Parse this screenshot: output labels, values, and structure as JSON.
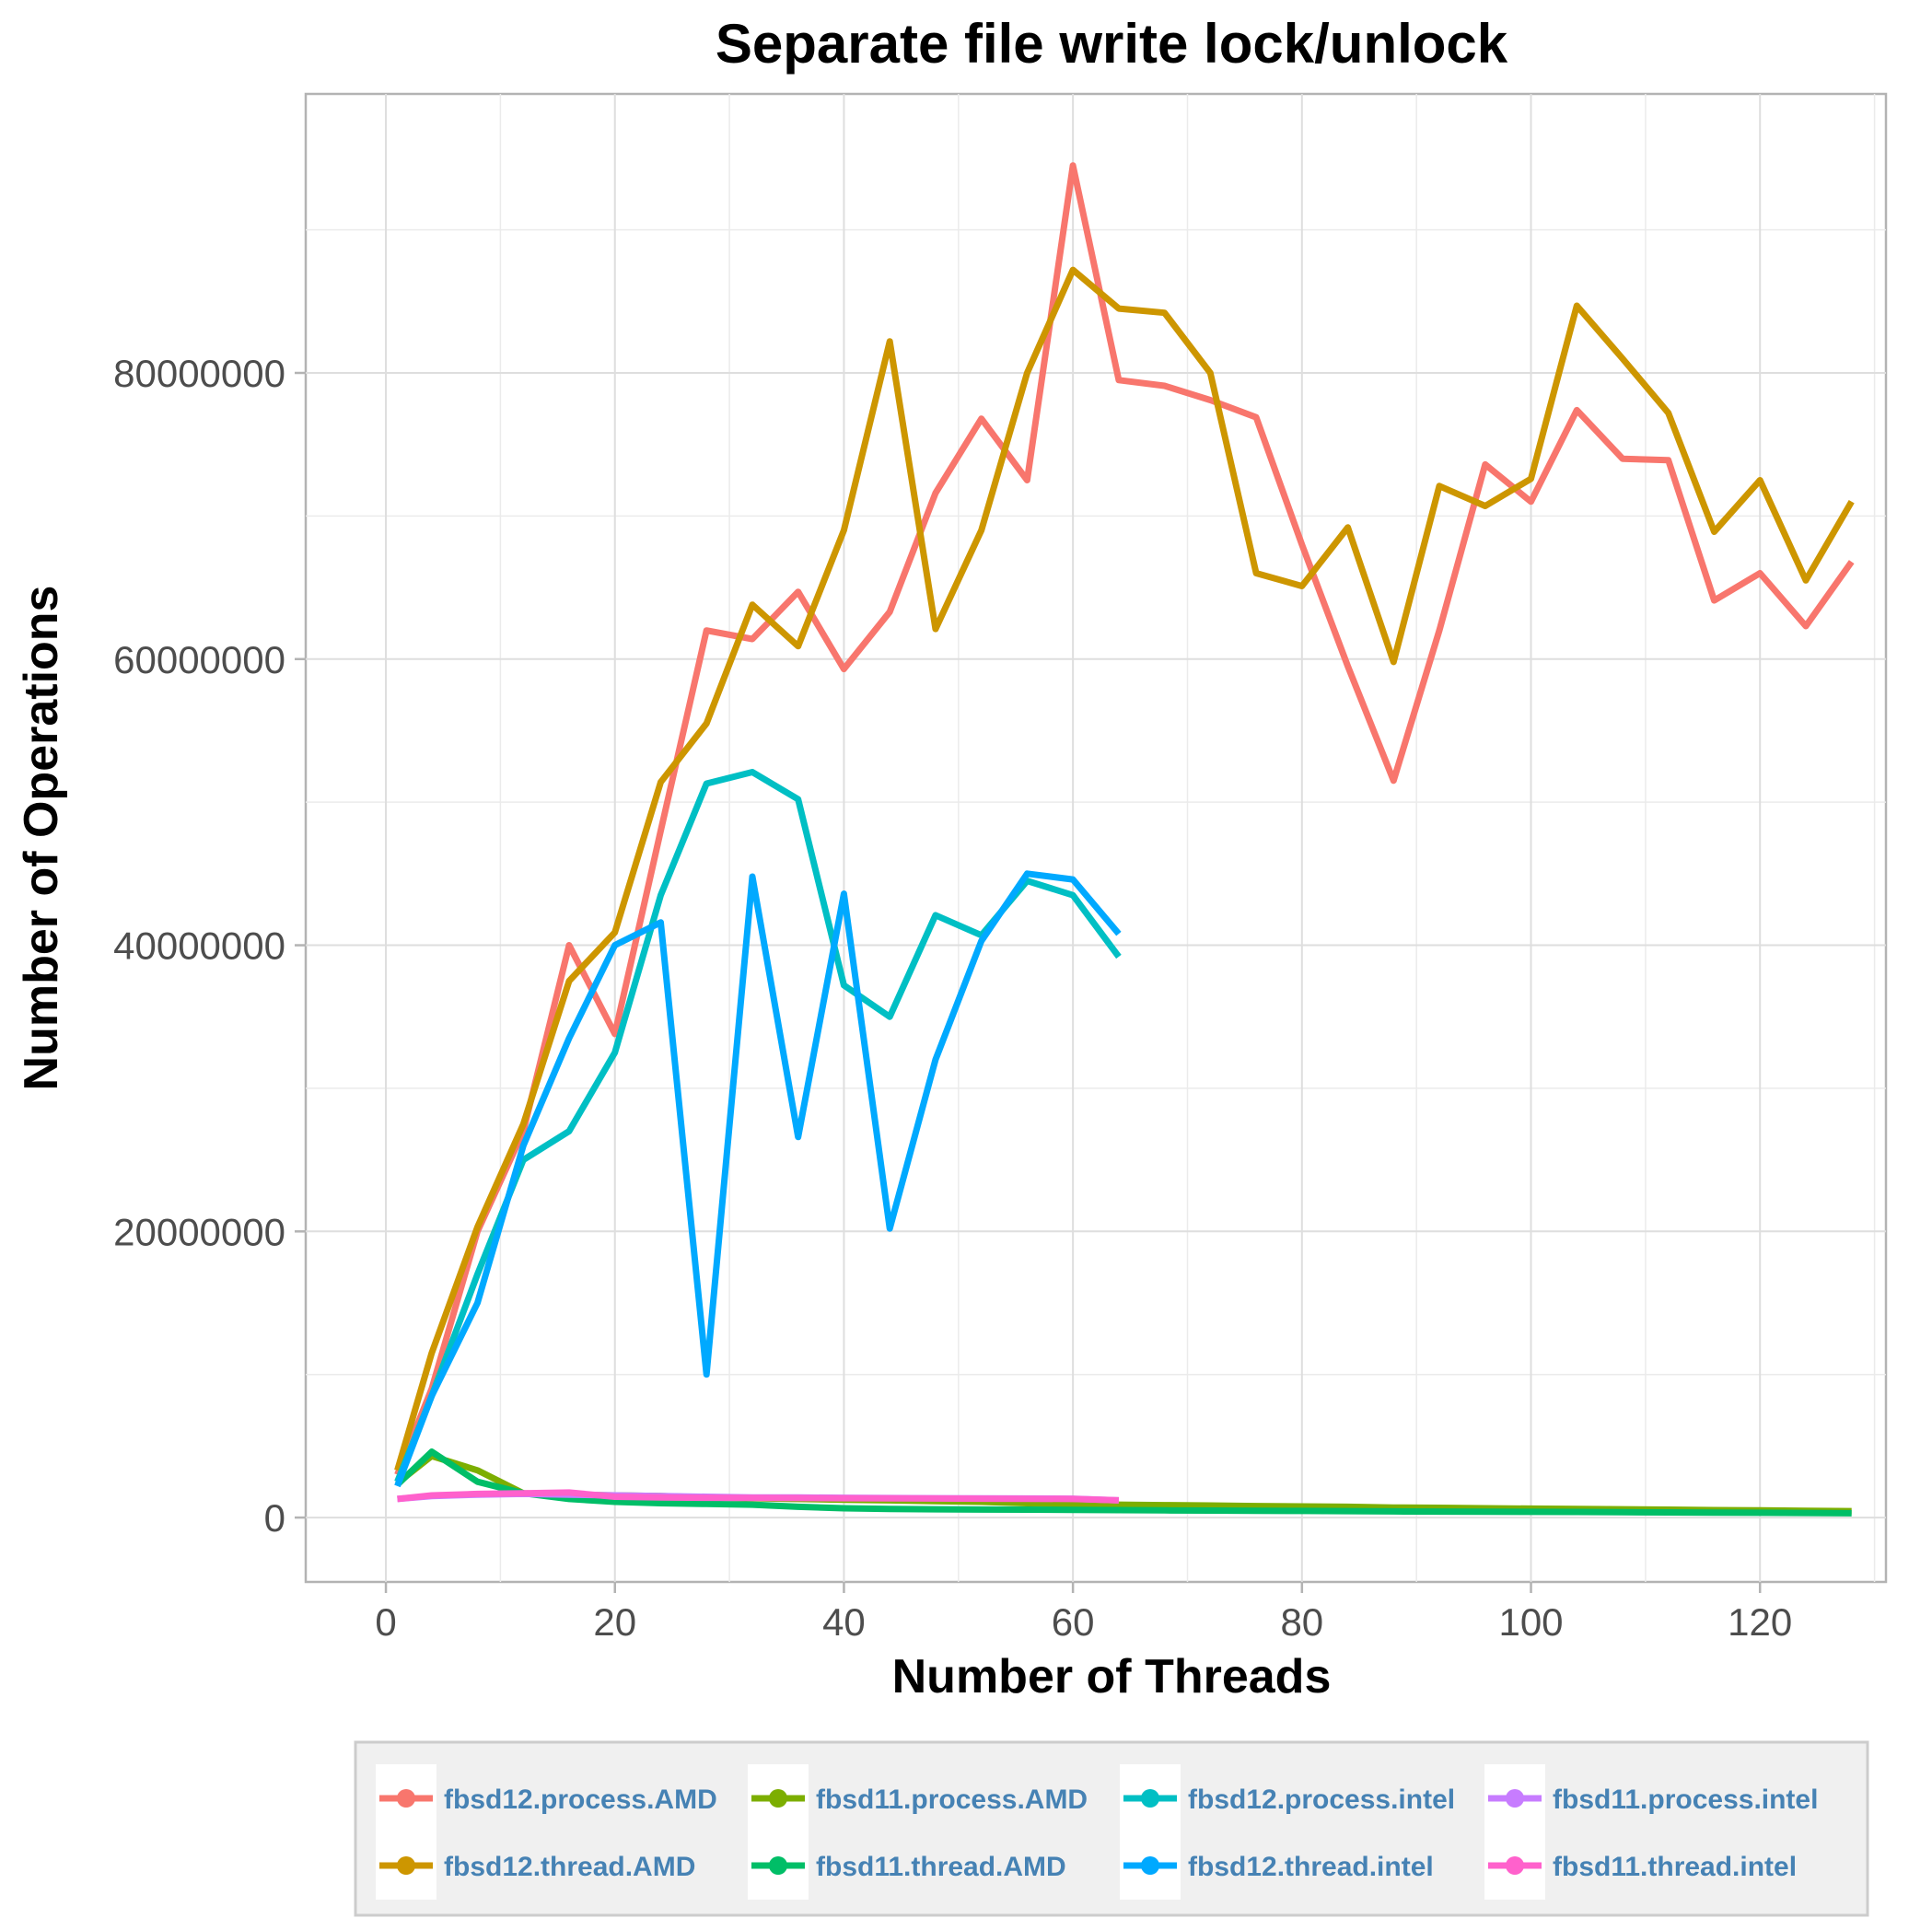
{
  "chart_data": {
    "type": "line",
    "title": "Separate file write lock/unlock",
    "xlabel": "Number of Threads",
    "ylabel": "Number of Operations",
    "xlim": [
      -7,
      131
    ],
    "ylim": [
      -4500000,
      99500000
    ],
    "x_ticks": [
      0,
      20,
      40,
      60,
      80,
      100,
      120
    ],
    "y_ticks": [
      0,
      20000000,
      40000000,
      60000000,
      80000000
    ],
    "x_tick_labels": [
      "0",
      "20",
      "40",
      "60",
      "80",
      "100",
      "120"
    ],
    "y_tick_labels": [
      "0",
      "20000000",
      "40000000",
      "60000000",
      "80000000"
    ],
    "grid": true,
    "legend_position": "bottom",
    "series": [
      {
        "name": "fbsd12.process.AMD",
        "color": "#F8766D",
        "points": [
          [
            1,
            3000000
          ],
          [
            4,
            9000000
          ],
          [
            8,
            20000000
          ],
          [
            12,
            27000000
          ],
          [
            16,
            40000000
          ],
          [
            20,
            33800000
          ],
          [
            24,
            48000000
          ],
          [
            28,
            62000000
          ],
          [
            32,
            61400000
          ],
          [
            36,
            64700000
          ],
          [
            40,
            59300000
          ],
          [
            44,
            63300000
          ],
          [
            48,
            71600000
          ],
          [
            52,
            76800000
          ],
          [
            56,
            72500000
          ],
          [
            60,
            94500000
          ],
          [
            64,
            79500000
          ],
          [
            68,
            79100000
          ],
          [
            72,
            78100000
          ],
          [
            76,
            76900000
          ],
          [
            80,
            68000000
          ],
          [
            84,
            59500000
          ],
          [
            88,
            51500000
          ],
          [
            92,
            62000000
          ],
          [
            96,
            73600000
          ],
          [
            100,
            71000000
          ],
          [
            104,
            77400000
          ],
          [
            108,
            74000000
          ],
          [
            112,
            73900000
          ],
          [
            116,
            64100000
          ],
          [
            120,
            66000000
          ],
          [
            124,
            62300000
          ],
          [
            128,
            66800000
          ]
        ]
      },
      {
        "name": "fbsd12.thread.AMD",
        "color": "#CD9600",
        "points": [
          [
            1,
            3300000
          ],
          [
            4,
            11500000
          ],
          [
            8,
            20300000
          ],
          [
            12,
            27500000
          ],
          [
            16,
            37500000
          ],
          [
            20,
            40900000
          ],
          [
            24,
            51400000
          ],
          [
            28,
            55500000
          ],
          [
            32,
            63800000
          ],
          [
            36,
            60900000
          ],
          [
            40,
            69000000
          ],
          [
            44,
            82200000
          ],
          [
            48,
            62100000
          ],
          [
            52,
            69000000
          ],
          [
            56,
            80000000
          ],
          [
            60,
            87200000
          ],
          [
            64,
            84500000
          ],
          [
            68,
            84200000
          ],
          [
            72,
            80000000
          ],
          [
            76,
            66000000
          ],
          [
            80,
            65100000
          ],
          [
            84,
            69200000
          ],
          [
            88,
            59800000
          ],
          [
            92,
            72100000
          ],
          [
            96,
            70700000
          ],
          [
            100,
            72600000
          ],
          [
            104,
            84700000
          ],
          [
            108,
            81000000
          ],
          [
            112,
            77200000
          ],
          [
            116,
            68900000
          ],
          [
            120,
            72500000
          ],
          [
            124,
            65500000
          ],
          [
            128,
            71000000
          ]
        ]
      },
      {
        "name": "fbsd11.process.AMD",
        "color": "#7CAE00",
        "points": [
          [
            1,
            2400000
          ],
          [
            4,
            4300000
          ],
          [
            8,
            3300000
          ],
          [
            12,
            1700000
          ],
          [
            16,
            1600000
          ],
          [
            20,
            1550000
          ],
          [
            24,
            1500000
          ],
          [
            28,
            1400000
          ],
          [
            32,
            1350000
          ],
          [
            36,
            1300000
          ],
          [
            40,
            1250000
          ],
          [
            44,
            1200000
          ],
          [
            48,
            1150000
          ],
          [
            52,
            1100000
          ],
          [
            56,
            1000000
          ],
          [
            60,
            950000
          ],
          [
            64,
            900000
          ],
          [
            68,
            870000
          ],
          [
            72,
            840000
          ],
          [
            76,
            800000
          ],
          [
            80,
            780000
          ],
          [
            84,
            750000
          ],
          [
            88,
            700000
          ],
          [
            92,
            680000
          ],
          [
            96,
            650000
          ],
          [
            100,
            620000
          ],
          [
            104,
            600000
          ],
          [
            108,
            580000
          ],
          [
            112,
            550000
          ],
          [
            116,
            520000
          ],
          [
            120,
            500000
          ],
          [
            124,
            470000
          ],
          [
            128,
            450000
          ]
        ]
      },
      {
        "name": "fbsd11.thread.AMD",
        "color": "#00BE67",
        "points": [
          [
            1,
            2300000
          ],
          [
            4,
            4600000
          ],
          [
            8,
            2500000
          ],
          [
            12,
            1700000
          ],
          [
            16,
            1300000
          ],
          [
            20,
            1100000
          ],
          [
            24,
            1000000
          ],
          [
            28,
            950000
          ],
          [
            32,
            900000
          ],
          [
            36,
            750000
          ],
          [
            40,
            650000
          ],
          [
            44,
            600000
          ],
          [
            48,
            580000
          ],
          [
            52,
            560000
          ],
          [
            56,
            550000
          ],
          [
            60,
            530000
          ],
          [
            64,
            520000
          ],
          [
            68,
            500000
          ],
          [
            72,
            490000
          ],
          [
            76,
            470000
          ],
          [
            80,
            460000
          ],
          [
            84,
            450000
          ],
          [
            88,
            430000
          ],
          [
            92,
            420000
          ],
          [
            96,
            410000
          ],
          [
            100,
            400000
          ],
          [
            104,
            390000
          ],
          [
            108,
            370000
          ],
          [
            112,
            360000
          ],
          [
            116,
            340000
          ],
          [
            120,
            330000
          ],
          [
            124,
            320000
          ],
          [
            128,
            300000
          ]
        ]
      },
      {
        "name": "fbsd12.process.intel",
        "color": "#00BFC4",
        "points": [
          [
            1,
            2500000
          ],
          [
            4,
            8500000
          ],
          [
            8,
            17000000
          ],
          [
            12,
            25000000
          ],
          [
            16,
            27000000
          ],
          [
            20,
            32500000
          ],
          [
            24,
            43500000
          ],
          [
            28,
            51300000
          ],
          [
            32,
            52100000
          ],
          [
            36,
            50200000
          ],
          [
            40,
            37200000
          ],
          [
            44,
            35000000
          ],
          [
            48,
            42100000
          ],
          [
            52,
            40700000
          ],
          [
            56,
            44500000
          ],
          [
            60,
            43500000
          ],
          [
            64,
            39200000
          ]
        ]
      },
      {
        "name": "fbsd11.process.intel",
        "color": "#C77CFF",
        "points": [
          [
            1,
            1300000
          ],
          [
            4,
            1500000
          ],
          [
            8,
            1600000
          ],
          [
            12,
            1650000
          ],
          [
            16,
            1600000
          ],
          [
            20,
            1550000
          ],
          [
            24,
            1500000
          ],
          [
            28,
            1450000
          ],
          [
            32,
            1400000
          ],
          [
            36,
            1400000
          ],
          [
            40,
            1380000
          ],
          [
            44,
            1360000
          ],
          [
            48,
            1350000
          ],
          [
            52,
            1340000
          ],
          [
            56,
            1330000
          ],
          [
            60,
            1320000
          ],
          [
            64,
            1200000
          ]
        ]
      },
      {
        "name": "fbsd12.thread.intel",
        "color": "#00A9FF",
        "points": [
          [
            1,
            2200000
          ],
          [
            4,
            8500000
          ],
          [
            8,
            15000000
          ],
          [
            12,
            26000000
          ],
          [
            16,
            33500000
          ],
          [
            20,
            40000000
          ],
          [
            24,
            41600000
          ],
          [
            28,
            10000000
          ],
          [
            32,
            44800000
          ],
          [
            36,
            26600000
          ],
          [
            40,
            43600000
          ],
          [
            44,
            20200000
          ],
          [
            48,
            32000000
          ],
          [
            52,
            40300000
          ],
          [
            56,
            45000000
          ],
          [
            60,
            44600000
          ],
          [
            64,
            40800000
          ]
        ]
      },
      {
        "name": "fbsd11.thread.intel",
        "color": "#FF61CC",
        "points": [
          [
            1,
            1300000
          ],
          [
            4,
            1550000
          ],
          [
            8,
            1650000
          ],
          [
            12,
            1700000
          ],
          [
            16,
            1750000
          ],
          [
            20,
            1450000
          ],
          [
            24,
            1400000
          ],
          [
            28,
            1380000
          ],
          [
            32,
            1370000
          ],
          [
            36,
            1360000
          ],
          [
            40,
            1350000
          ],
          [
            44,
            1340000
          ],
          [
            48,
            1330000
          ],
          [
            52,
            1320000
          ],
          [
            56,
            1310000
          ],
          [
            60,
            1300000
          ],
          [
            64,
            1200000
          ]
        ]
      }
    ],
    "legend_order": [
      "fbsd12.process.AMD",
      "fbsd11.process.AMD",
      "fbsd12.process.intel",
      "fbsd11.process.intel",
      "fbsd12.thread.AMD",
      "fbsd11.thread.AMD",
      "fbsd12.thread.intel",
      "fbsd11.thread.intel"
    ]
  }
}
